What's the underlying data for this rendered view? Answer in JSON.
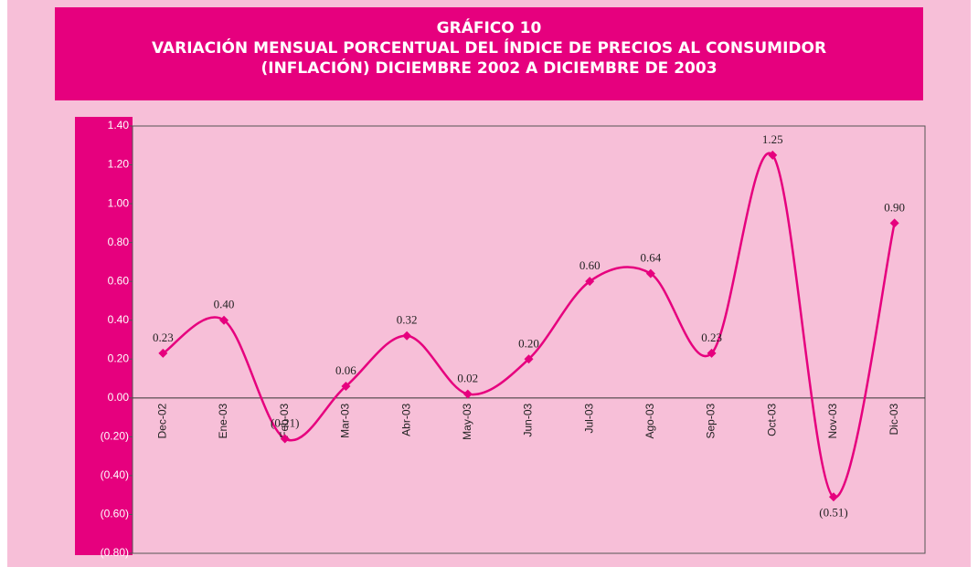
{
  "chart_data": {
    "type": "line",
    "title": [
      "GRÁFICO 10",
      "VARIACIÓN MENSUAL PORCENTUAL DEL ÍNDICE DE PRECIOS AL CONSUMIDOR",
      "(INFLACIÓN) DICIEMBRE 2002 A DICIEMBRE DE 2003"
    ],
    "categories": [
      "Dec-02",
      "Ene-03",
      "Feb-03",
      "Mar-03",
      "Abr-03",
      "May-03",
      "Jun-03",
      "Jul-03",
      "Ago-03",
      "Sep-03",
      "Oct-03",
      "Nov-03",
      "Dic-03"
    ],
    "values": [
      0.23,
      0.4,
      -0.21,
      0.06,
      0.32,
      0.02,
      0.2,
      0.6,
      0.64,
      0.23,
      1.25,
      -0.51,
      0.9
    ],
    "value_labels": [
      "0.23",
      "0.40",
      "(0.21)",
      "0.06",
      "0.32",
      "0.02",
      "0.20",
      "0.60",
      "0.64",
      "0.23",
      "1.25",
      "(0.51)",
      "0.90"
    ],
    "color": "#e6007e",
    "ylim": [
      -0.8,
      1.4
    ],
    "yticks": [
      {
        "value": 1.4,
        "label": "1.40"
      },
      {
        "value": 1.2,
        "label": "1.20"
      },
      {
        "value": 1.0,
        "label": "1.00"
      },
      {
        "value": 0.8,
        "label": "0.80"
      },
      {
        "value": 0.6,
        "label": "0.60"
      },
      {
        "value": 0.4,
        "label": "0.40"
      },
      {
        "value": 0.2,
        "label": "0.20"
      },
      {
        "value": 0,
        "label": "0.00"
      },
      {
        "value": -0.2,
        "label": "(0.20)"
      },
      {
        "value": -0.4,
        "label": "(0.40)"
      },
      {
        "value": -0.6,
        "label": "(0.60)"
      },
      {
        "value": -0.8,
        "label": "(0.80)"
      }
    ],
    "grid": false
  }
}
